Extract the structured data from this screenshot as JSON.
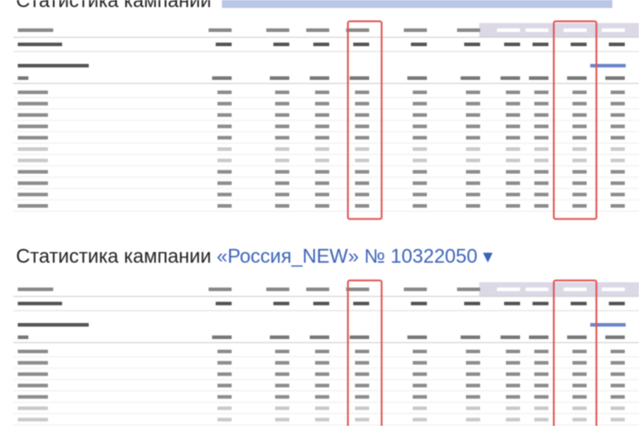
{
  "sections": [
    {
      "title": "Статистика кампании"
    },
    {
      "title": "Статистика кампании",
      "campaign": "«Россия_NEW» № 10322050 ▾"
    }
  ]
}
